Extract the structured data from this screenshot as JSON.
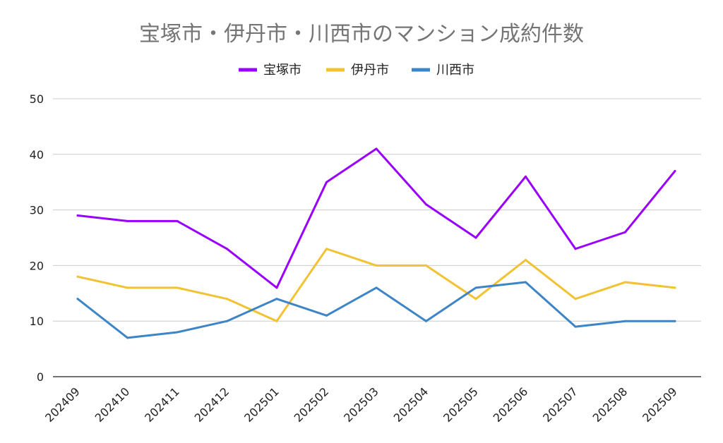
{
  "chart_data": {
    "type": "line",
    "title": "宝塚市・伊丹市・川西市のマンション成約件数",
    "xlabel": "",
    "ylabel": "",
    "categories": [
      "202409",
      "202410",
      "202411",
      "202412",
      "202501",
      "202502",
      "202503",
      "202504",
      "202505",
      "202506",
      "202507",
      "202508",
      "202509"
    ],
    "ylim": [
      0,
      50
    ],
    "yticks": [
      0,
      10,
      20,
      30,
      40,
      50
    ],
    "grid": true,
    "legend_position": "top-center",
    "series": [
      {
        "name": "宝塚市",
        "color": "#9900ff",
        "values": [
          29,
          28,
          28,
          23,
          16,
          35,
          41,
          31,
          25,
          36,
          23,
          26,
          37
        ]
      },
      {
        "name": "伊丹市",
        "color": "#f1c232",
        "values": [
          18,
          16,
          16,
          14,
          10,
          23,
          20,
          20,
          14,
          21,
          14,
          17,
          16
        ]
      },
      {
        "name": "川西市",
        "color": "#3d85c6",
        "values": [
          14,
          7,
          8,
          10,
          14,
          11,
          16,
          10,
          16,
          17,
          9,
          10,
          10
        ]
      }
    ]
  }
}
